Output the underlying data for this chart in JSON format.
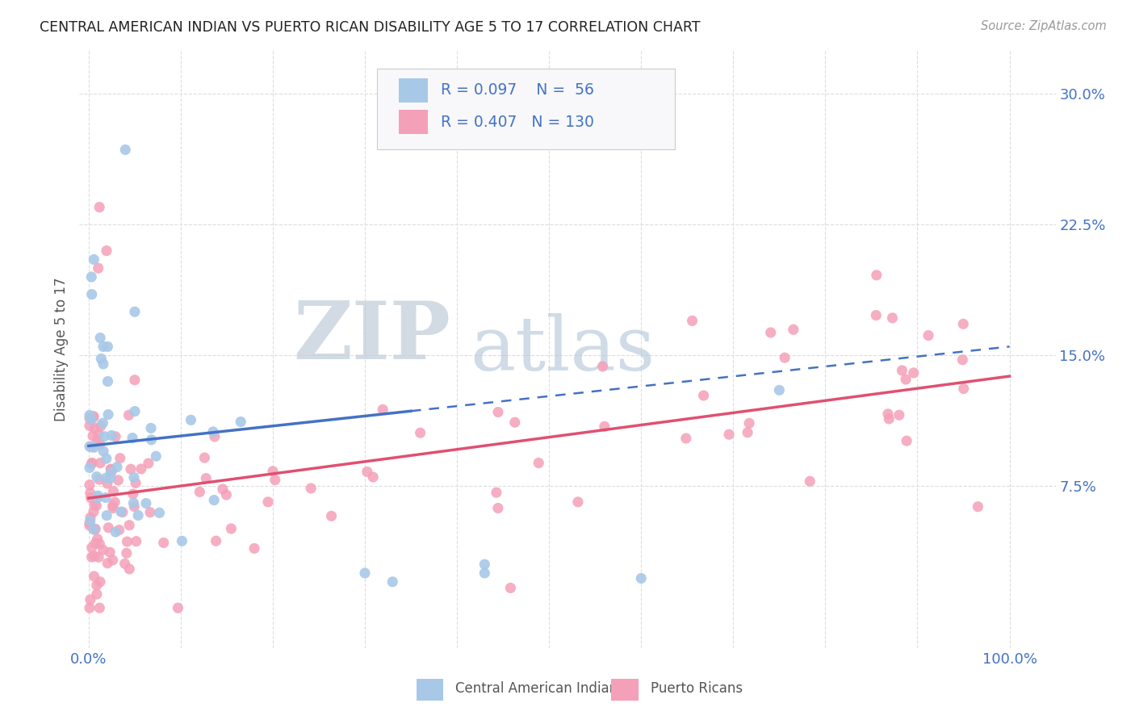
{
  "title": "CENTRAL AMERICAN INDIAN VS PUERTO RICAN DISABILITY AGE 5 TO 17 CORRELATION CHART",
  "source": "Source: ZipAtlas.com",
  "ylabel": "Disability Age 5 to 17",
  "series1_color": "#a8c8e8",
  "series1_line_color": "#4472c4",
  "series2_color": "#f4a0b8",
  "series2_line_color": "#e05070",
  "series1_label": "Central American Indians",
  "series2_label": "Puerto Ricans",
  "series1_R": "0.097",
  "series1_N": "56",
  "series2_R": "0.407",
  "series2_N": "130",
  "legend_text_color": "#4472c4",
  "watermark_zip_color": "#c8d4e0",
  "watermark_atlas_color": "#b8cce0",
  "background_color": "#ffffff",
  "grid_color": "#dddddd",
  "ytick_vals": [
    0.075,
    0.15,
    0.225,
    0.3
  ],
  "ytick_labels": [
    "7.5%",
    "15.0%",
    "22.5%",
    "30.0%"
  ],
  "xtick_vals": [
    0.0,
    0.1,
    0.2,
    0.3,
    0.4,
    0.5,
    0.6,
    0.7,
    0.8,
    0.9,
    1.0
  ],
  "xtick_labels": [
    "0.0%",
    "",
    "",
    "",
    "",
    "",
    "",
    "",
    "",
    "",
    "100.0%"
  ],
  "xlim": [
    -0.01,
    1.05
  ],
  "ylim": [
    -0.018,
    0.325
  ],
  "blue_line_x": [
    0.0,
    0.35
  ],
  "blue_line_y": [
    0.098,
    0.118
  ],
  "dashed_line_x": [
    0.35,
    1.0
  ],
  "dashed_line_y": [
    0.118,
    0.155
  ],
  "pink_line_x": [
    0.0,
    1.0
  ],
  "pink_line_y": [
    0.068,
    0.138
  ]
}
